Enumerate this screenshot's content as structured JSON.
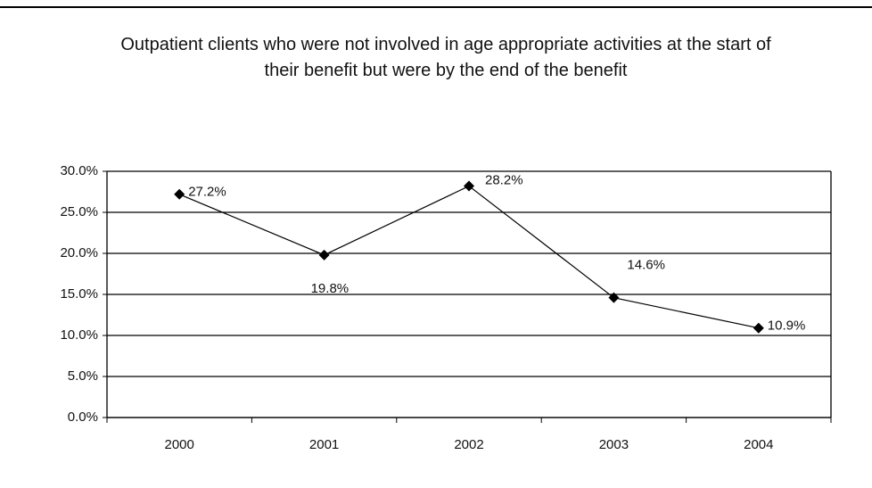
{
  "chart_data": {
    "type": "line",
    "title": "Outpatient clients who were not involved in age appropriate activities at the start of their benefit but were by the end of the benefit",
    "categories": [
      "2000",
      "2001",
      "2002",
      "2003",
      "2004"
    ],
    "series": [
      {
        "name": "Outpatient clients",
        "color": "#000000",
        "values": [
          27.2,
          19.8,
          28.2,
          14.6,
          10.9
        ],
        "value_labels": [
          "27.2%",
          "19.8%",
          "28.2%",
          "14.6%",
          "10.9%"
        ]
      }
    ],
    "ylim": [
      0,
      30
    ],
    "yticks": [
      {
        "value": 0,
        "label": "0.0%"
      },
      {
        "value": 5,
        "label": "5.0%"
      },
      {
        "value": 10,
        "label": "10.0%"
      },
      {
        "value": 15,
        "label": "15.0%"
      },
      {
        "value": 20,
        "label": "20.0%"
      },
      {
        "value": 25,
        "label": "25.0%"
      },
      {
        "value": 30,
        "label": "30.0%"
      }
    ],
    "grid": true
  }
}
